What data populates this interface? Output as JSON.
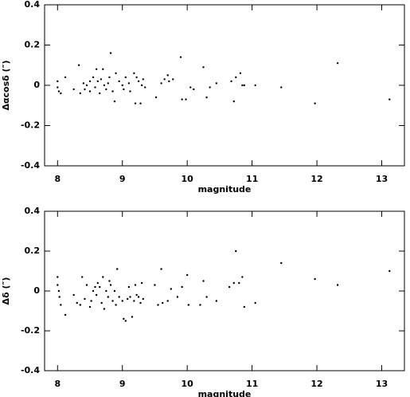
{
  "chart_data": [
    {
      "type": "scatter",
      "xlabel": "magnitude",
      "ylabel": "Δαcosδ (″)",
      "color": "#000000",
      "xlim": [
        7.8,
        13.35
      ],
      "ylim": [
        -0.4,
        0.4
      ],
      "xticks": [
        8,
        9,
        10,
        11,
        12,
        13
      ],
      "yticks": [
        -0.4,
        -0.2,
        0,
        0.2,
        0.4
      ],
      "x": [
        8.0,
        8.0,
        8.02,
        8.05,
        8.12,
        8.25,
        8.33,
        8.35,
        8.4,
        8.42,
        8.45,
        8.5,
        8.5,
        8.55,
        8.58,
        8.6,
        8.62,
        8.65,
        8.67,
        8.7,
        8.72,
        8.75,
        8.78,
        8.8,
        8.82,
        8.85,
        8.88,
        8.9,
        8.95,
        9.0,
        9.02,
        9.05,
        9.1,
        9.12,
        9.18,
        9.2,
        9.22,
        9.25,
        9.28,
        9.3,
        9.32,
        9.35,
        9.52,
        9.6,
        9.65,
        9.7,
        9.72,
        9.78,
        9.9,
        9.92,
        9.98,
        10.05,
        10.1,
        10.25,
        10.3,
        10.35,
        10.45,
        10.68,
        10.72,
        10.75,
        10.82,
        10.85,
        10.88,
        11.05,
        11.45,
        11.97,
        12.32,
        13.12
      ],
      "values": [
        0.02,
        -0.01,
        -0.03,
        -0.04,
        0.04,
        -0.02,
        0.1,
        -0.04,
        0.01,
        -0.02,
        0.0,
        0.02,
        -0.03,
        0.04,
        -0.01,
        0.08,
        0.02,
        -0.04,
        0.03,
        0.08,
        0.0,
        -0.02,
        0.01,
        0.04,
        0.16,
        -0.03,
        -0.08,
        0.06,
        0.02,
        0.0,
        -0.02,
        0.04,
        0.01,
        -0.03,
        0.06,
        -0.09,
        0.04,
        0.02,
        -0.09,
        0.0,
        0.03,
        -0.01,
        -0.06,
        0.01,
        0.03,
        0.05,
        0.02,
        0.03,
        0.14,
        -0.07,
        -0.07,
        -0.01,
        -0.02,
        0.09,
        -0.06,
        -0.01,
        0.01,
        0.02,
        -0.08,
        0.04,
        0.06,
        0.0,
        0.0,
        0.0,
        -0.01,
        -0.09,
        0.11,
        -0.07
      ]
    },
    {
      "type": "scatter",
      "xlabel": "magnitude",
      "ylabel": "Δδ (″)",
      "color": "#000000",
      "xlim": [
        7.8,
        13.35
      ],
      "ylim": [
        -0.4,
        0.4
      ],
      "xticks": [
        8,
        9,
        10,
        11,
        12,
        13
      ],
      "yticks": [
        -0.4,
        -0.2,
        0,
        0.2,
        0.4
      ],
      "x": [
        8.0,
        8.0,
        8.02,
        8.03,
        8.05,
        8.12,
        8.25,
        8.3,
        8.35,
        8.38,
        8.42,
        8.45,
        8.5,
        8.52,
        8.55,
        8.58,
        8.6,
        8.62,
        8.65,
        8.68,
        8.7,
        8.72,
        8.75,
        8.78,
        8.8,
        8.82,
        8.85,
        8.88,
        8.9,
        8.92,
        8.95,
        9.0,
        9.02,
        9.05,
        9.08,
        9.1,
        9.12,
        9.15,
        9.18,
        9.2,
        9.22,
        9.25,
        9.28,
        9.3,
        9.32,
        9.5,
        9.55,
        9.6,
        9.62,
        9.7,
        9.75,
        9.85,
        9.92,
        10.0,
        10.02,
        10.2,
        10.25,
        10.3,
        10.45,
        10.65,
        10.72,
        10.75,
        10.8,
        10.85,
        10.88,
        11.05,
        11.45,
        11.97,
        12.32,
        13.12
      ],
      "values": [
        0.07,
        0.03,
        0.0,
        -0.03,
        -0.07,
        -0.12,
        -0.02,
        -0.06,
        -0.07,
        0.07,
        -0.04,
        0.03,
        -0.08,
        -0.05,
        0.0,
        0.02,
        -0.02,
        0.04,
        0.02,
        -0.06,
        0.07,
        -0.09,
        0.0,
        -0.03,
        0.05,
        0.03,
        -0.05,
        0.0,
        -0.07,
        0.11,
        -0.03,
        -0.05,
        -0.14,
        -0.15,
        -0.04,
        0.02,
        -0.03,
        -0.13,
        -0.05,
        0.03,
        -0.02,
        -0.03,
        -0.06,
        0.04,
        -0.04,
        0.03,
        -0.07,
        0.11,
        -0.06,
        -0.05,
        0.01,
        -0.03,
        0.02,
        0.08,
        -0.07,
        -0.07,
        0.05,
        -0.03,
        -0.05,
        0.02,
        0.04,
        0.2,
        0.04,
        0.07,
        -0.08,
        -0.06,
        0.14,
        0.06,
        0.03,
        0.1
      ]
    }
  ]
}
